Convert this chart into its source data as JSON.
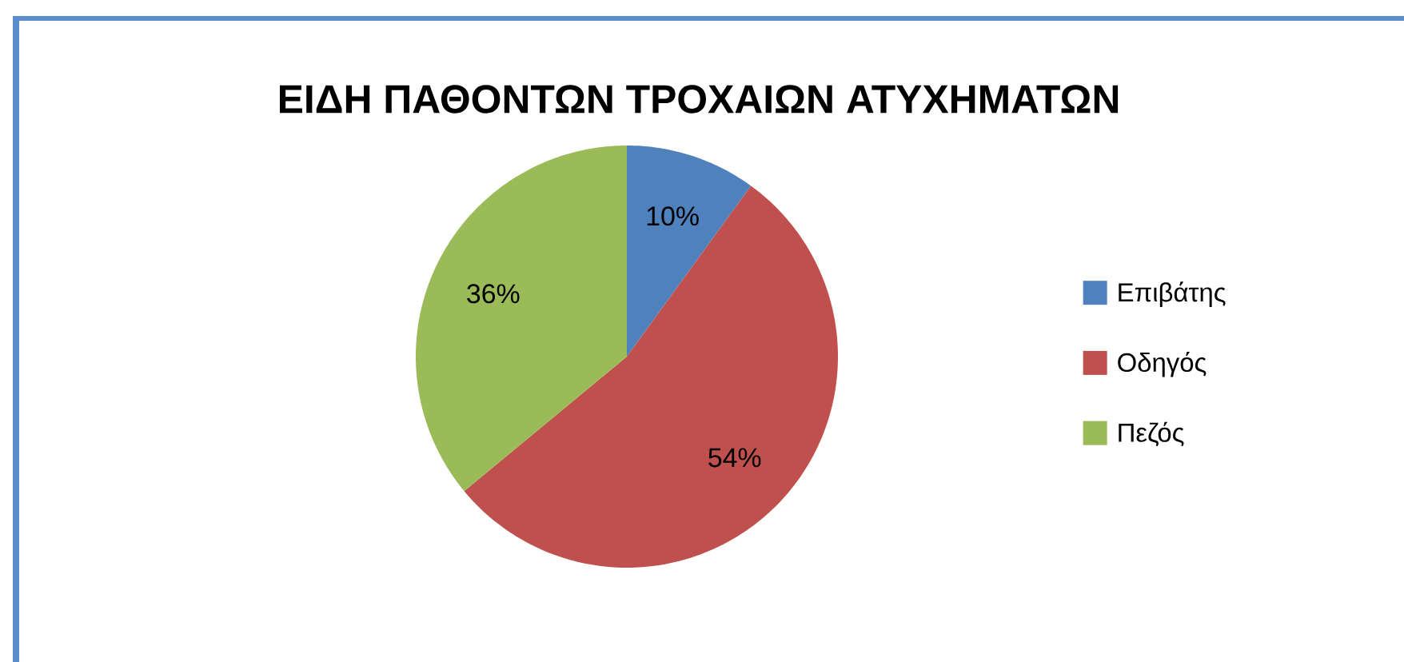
{
  "chart_data": {
    "type": "pie",
    "title": "ΕΙΔΗ ΠΑΘΟΝΤΩΝ ΤΡΟΧΑΙΩΝ ΑΤΥΧΗΜΑΤΩΝ",
    "categories": [
      "Επιβάτης",
      "Οδηγός",
      "Πεζός"
    ],
    "values": [
      10,
      54,
      36
    ],
    "colors": [
      "#4f81bd",
      "#c0504d",
      "#9bbb59"
    ],
    "value_labels": [
      "10%",
      "54%",
      "36%"
    ],
    "legend": "right"
  }
}
